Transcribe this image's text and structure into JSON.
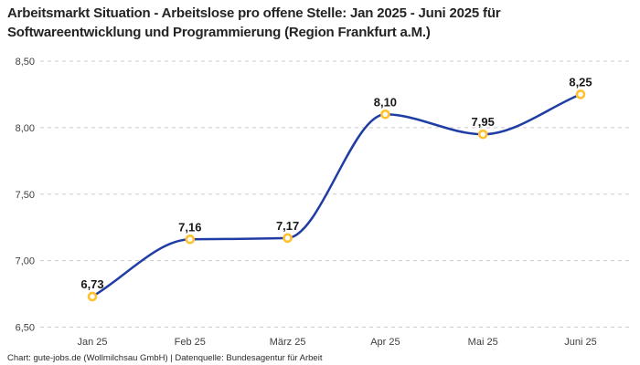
{
  "header": {
    "title": "Arbeitsmarkt Situation - Arbeitslose pro offene Stelle: Jan 2025 - Juni 2025 für Softwareentwicklung und Programmierung (Region Frankfurt a.M.)"
  },
  "footer": {
    "text": "Chart: gute-jobs.de (Wollmilchsau GmbH) | Datenquelle: Bundesagentur für Arbeit"
  },
  "colors": {
    "line": "#1f3da4",
    "marker_ring": "#ffc22e",
    "marker_fill": "#ffffff",
    "grid": "#cccccc",
    "title_text": "#242424",
    "axis_text": "#404040",
    "value_text": "#1a1a1a",
    "background": "#ffffff"
  },
  "chart_data": {
    "type": "line",
    "title": "Arbeitsmarkt Situation - Arbeitslose pro offene Stelle: Jan 2025 - Juni 2025 für Softwareentwicklung und Programmierung (Region Frankfurt a.M.)",
    "categories": [
      "Jan 25",
      "Feb 25",
      "März 25",
      "Apr 25",
      "Mai 25",
      "Juni 25"
    ],
    "values": [
      6.73,
      7.16,
      7.17,
      8.1,
      7.95,
      8.25
    ],
    "value_labels": [
      "6,73",
      "7,16",
      "7,17",
      "8,10",
      "7,95",
      "8,25"
    ],
    "xlabel": "",
    "ylabel": "",
    "ylim": [
      6.5,
      8.5
    ],
    "yticks": [
      6.5,
      7.0,
      7.5,
      8.0,
      8.5
    ],
    "ytick_labels": [
      "6,50",
      "7,00",
      "7,50",
      "8,00",
      "8,50"
    ],
    "grid": "horizontal-dashed",
    "legend": "none",
    "interpolation": "monotone-spline",
    "marker": "open-circle",
    "source": "Chart: gute-jobs.de (Wollmilchsau GmbH) | Datenquelle: Bundesagentur für Arbeit"
  }
}
